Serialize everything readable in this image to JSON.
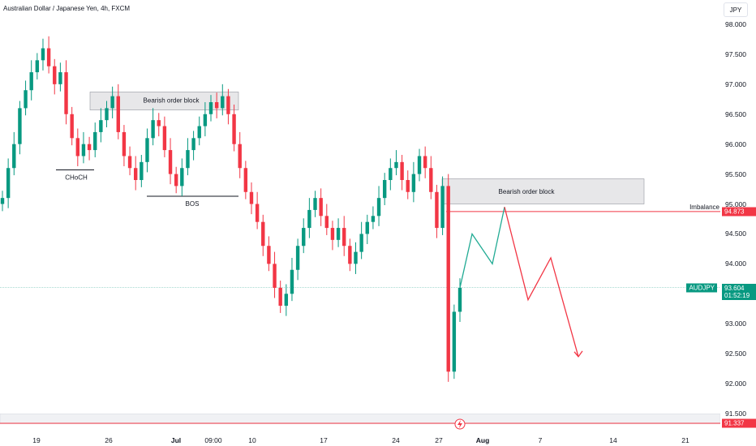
{
  "header": {
    "title": "Australian Dollar / Japanese Yen, 4h, FXCM",
    "currency": "JPY"
  },
  "price_scale": {
    "ticks": [
      "98.000",
      "97.500",
      "97.000",
      "96.500",
      "96.000",
      "95.500",
      "95.000",
      "94.500",
      "94.000",
      "93.500",
      "93.000",
      "92.500",
      "92.000",
      "91.500"
    ]
  },
  "time_scale": {
    "labels": [
      {
        "text": "19",
        "bold": false
      },
      {
        "text": "26",
        "bold": false
      },
      {
        "text": "Jul",
        "bold": true
      },
      {
        "text": "09:00",
        "bold": false
      },
      {
        "text": "10",
        "bold": false
      },
      {
        "text": "17",
        "bold": false
      },
      {
        "text": "24",
        "bold": false
      },
      {
        "text": "27",
        "bold": false
      },
      {
        "text": "Aug",
        "bold": true
      },
      {
        "text": "7",
        "bold": false
      },
      {
        "text": "14",
        "bold": false
      },
      {
        "text": "21",
        "bold": false
      }
    ]
  },
  "price_tags": {
    "symbol": "AUDJPY",
    "last_price": "93.604",
    "countdown": "01:52:19",
    "imbalance_price": "94.873",
    "bottom_price": "91.337"
  },
  "annotations": {
    "order_block_1": "Bearish order block",
    "order_block_2": "Bearish order block",
    "choch": "CHoCH",
    "bos": "BOS",
    "imbalance": "Imbalance"
  },
  "colors": {
    "up": "#089981",
    "down": "#f23645",
    "projection_up": "#22ab94",
    "projection_down": "#f23645",
    "zone_fill": "#e7e7e9",
    "zone_border": "#9598a1"
  },
  "chart_data": {
    "type": "candlestick",
    "symbol": "AUDJPY",
    "timeframe": "4h",
    "ylim": [
      91.3,
      98.1
    ],
    "series": [
      {
        "name": "price",
        "values": [
          95.1,
          95.6,
          96.0,
          96.6,
          96.9,
          97.2,
          97.4,
          97.6,
          97.3,
          97.0,
          97.2,
          96.5,
          96.1,
          95.8,
          96.0,
          95.9,
          96.2,
          96.4,
          96.6,
          96.8,
          96.2,
          95.8,
          95.6,
          95.4,
          95.7,
          96.1,
          96.4,
          96.3,
          95.9,
          95.5,
          95.3,
          95.6,
          95.9,
          96.1,
          96.3,
          96.5,
          96.7,
          96.6,
          96.8,
          96.5,
          96.0,
          95.6,
          95.2,
          95.0,
          94.7,
          94.3,
          94.0,
          93.6,
          93.3,
          93.5,
          93.9,
          94.3,
          94.6,
          94.9,
          95.1,
          94.8,
          94.6,
          94.4,
          94.6,
          94.3,
          94.0,
          94.2,
          94.5,
          94.7,
          94.8,
          95.1,
          95.4,
          95.6,
          95.7,
          95.4,
          95.2,
          95.5,
          95.8,
          95.6,
          95.2,
          94.6,
          95.3,
          92.2,
          93.2,
          93.6
        ]
      },
      {
        "name": "projection",
        "values": [
          93.6,
          94.5,
          94.0,
          94.95,
          93.4,
          94.1,
          92.45
        ]
      }
    ],
    "levels": {
      "imbalance": 94.873,
      "last": 93.604,
      "bottom": 91.337,
      "order_block_1": [
        96.57,
        96.87
      ],
      "order_block_2": [
        95.0,
        95.42
      ],
      "choch": 95.57,
      "bos": 95.13
    }
  }
}
